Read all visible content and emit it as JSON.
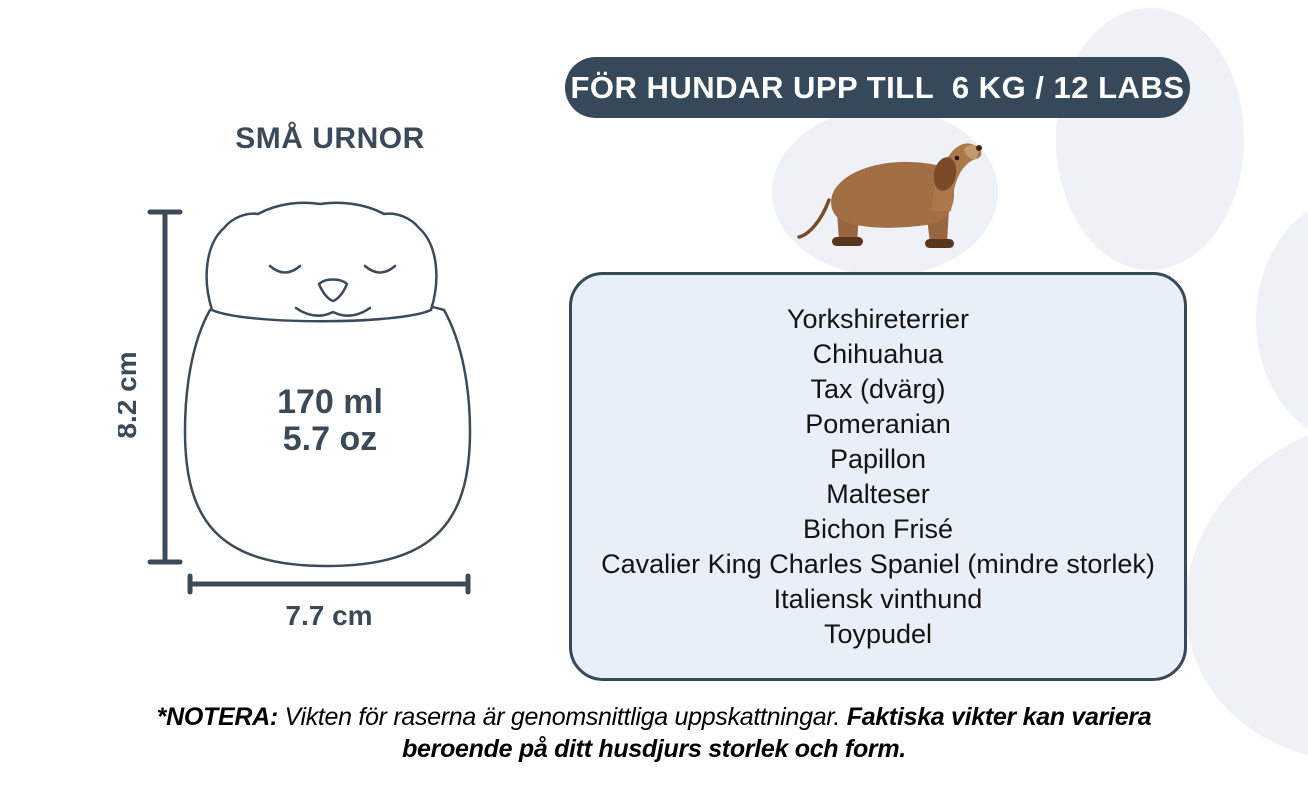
{
  "page": {
    "accent_dark": "#35495b",
    "panel_bg": "#e9eff9",
    "paw_motif_color": "#eef1f5",
    "background_motif": "paw-print"
  },
  "left_panel": {
    "title": "SMÅ URNOR",
    "urn_illustration": "cat-shaped-urn",
    "urn": {
      "height_label": "8.2 cm",
      "width_label": "7.7 cm",
      "volume_ml": "170 ml",
      "volume_oz": "5.7 oz"
    }
  },
  "right_panel": {
    "banner_label": "FÖR HUNDAR UPP TILL  6 KG / 12 LABS",
    "dog_illustration": "dachshund",
    "breeds": [
      "Yorkshireterrier",
      "Chihuahua",
      "Tax (dvärg)",
      "Pomeranian",
      "Papillon",
      "Malteser",
      "Bichon Frisé",
      "Cavalier King Charles Spaniel (mindre storlek)",
      "Italiensk vinthund",
      "Toypudel"
    ]
  },
  "footnote": {
    "prefix": "*NOTERA:",
    "normal": " Vikten för raserna är genomsnittliga uppskattningar. ",
    "bold": "Faktiska vikter kan variera beroende på ditt husdjurs storlek och form."
  }
}
